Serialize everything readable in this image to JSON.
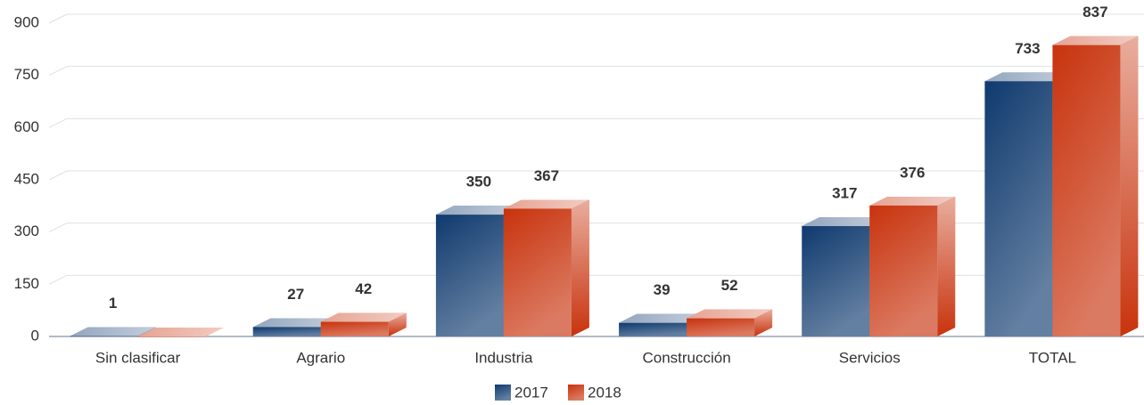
{
  "chart_data": {
    "type": "bar3d",
    "categories": [
      "Sin clasificar",
      "Agrario",
      "Industria",
      "Construcción",
      "Servicios",
      "TOTAL"
    ],
    "series": [
      {
        "name": "2017",
        "color": "#0f3a6e",
        "values": [
          1,
          27,
          350,
          39,
          317,
          733
        ]
      },
      {
        "name": "2018",
        "color": "#c8330d",
        "values": [
          0,
          42,
          367,
          52,
          376,
          837
        ]
      }
    ],
    "ylim": [
      0,
      900
    ],
    "yticks": [
      0,
      150,
      300,
      450,
      600,
      750,
      900
    ],
    "grid": true,
    "legend": "bottom"
  }
}
